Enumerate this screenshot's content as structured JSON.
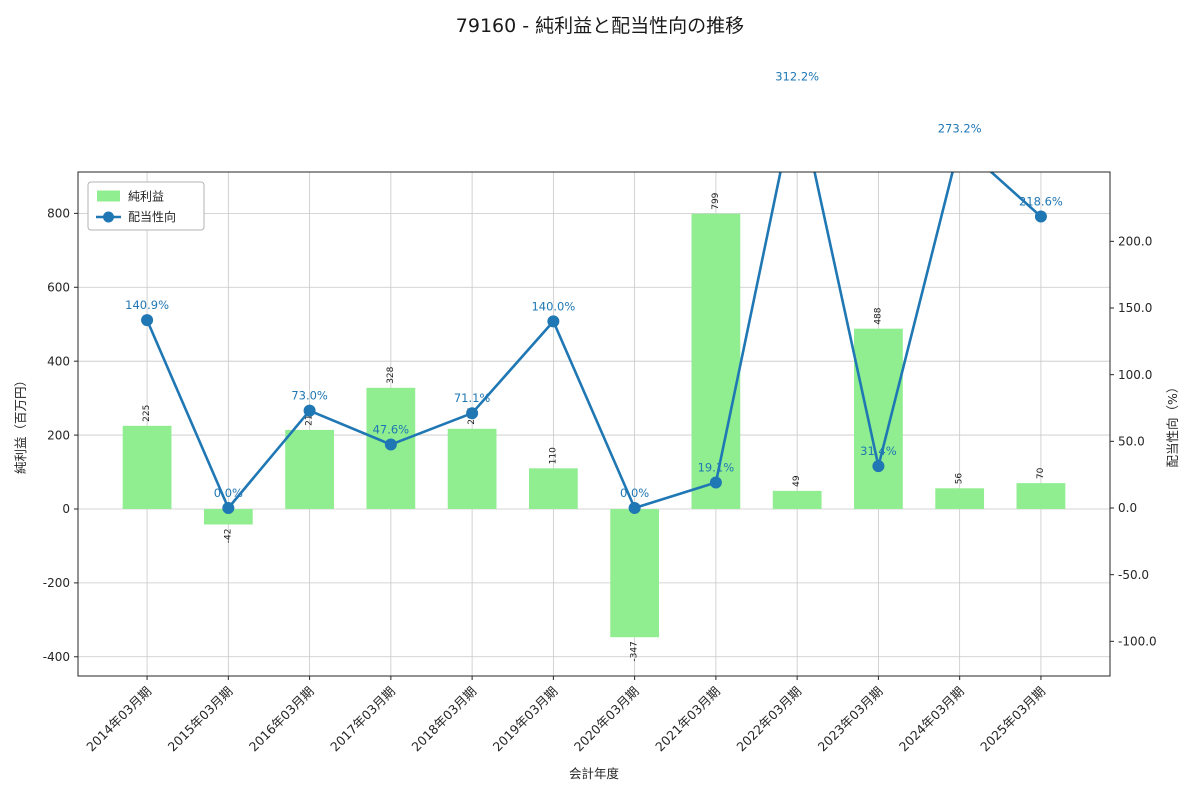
{
  "title": "79160 - 純利益と配当性向の推移",
  "chart_data": {
    "type": "bar+line",
    "title": "79160 - 純利益と配当性向の推移",
    "categories": [
      "2014年03月期",
      "2015年03月期",
      "2016年03月期",
      "2017年03月期",
      "2018年03月期",
      "2019年03月期",
      "2020年03月期",
      "2021年03月期",
      "2022年03月期",
      "2023年03月期",
      "2024年03月期",
      "2025年03月期"
    ],
    "series": [
      {
        "name": "純利益",
        "type": "bar",
        "axis": "left",
        "color": "#90ee90",
        "values": [
          225,
          -42,
          214,
          328,
          217,
          110,
          -347,
          799,
          49,
          488,
          56,
          70
        ],
        "labels": [
          "225",
          "-42",
          "214",
          "328",
          "217",
          "110",
          "-347",
          "799",
          "49",
          "488",
          "56",
          "70"
        ]
      },
      {
        "name": "配当性向",
        "type": "line",
        "axis": "right",
        "color": "#1f77b4",
        "values": [
          140.9,
          0.0,
          73.0,
          47.6,
          71.1,
          140.0,
          0.0,
          19.1,
          312.2,
          31.4,
          273.2,
          218.6
        ],
        "labels": [
          "140.9%",
          "0.0%",
          "73.0%",
          "47.6%",
          "71.1%",
          "140.0%",
          "0.0%",
          "19.1%",
          "312.2%",
          "31.4%",
          "273.2%",
          "218.6%"
        ]
      }
    ],
    "xlabel": "会計年度",
    "ylabel_left": "純利益（百万円）",
    "ylabel_right": "配当性向（%）",
    "left_ticks": [
      -400,
      -200,
      0,
      200,
      400,
      600,
      800
    ],
    "left_tick_labels": [
      "-400",
      "-200",
      "0",
      "200",
      "400",
      "600",
      "800"
    ],
    "right_ticks": [
      -100,
      -50,
      0,
      50,
      100,
      150,
      200
    ],
    "right_tick_labels": [
      "-100.0",
      "-50.0",
      "0.0",
      "50.0",
      "100.0",
      "150.0",
      "200.0"
    ],
    "ylim_left": [
      -452,
      912
    ],
    "ylim_right": [
      -126,
      252
    ],
    "grid": true,
    "legend": {
      "position": "upper-left",
      "items": [
        "純利益",
        "配当性向"
      ]
    },
    "colors": {
      "bar": "#90ee90",
      "line": "#1f77b4",
      "annotation": "#1f77b4",
      "grid": "#c8c8c8",
      "axis": "#262626"
    }
  }
}
